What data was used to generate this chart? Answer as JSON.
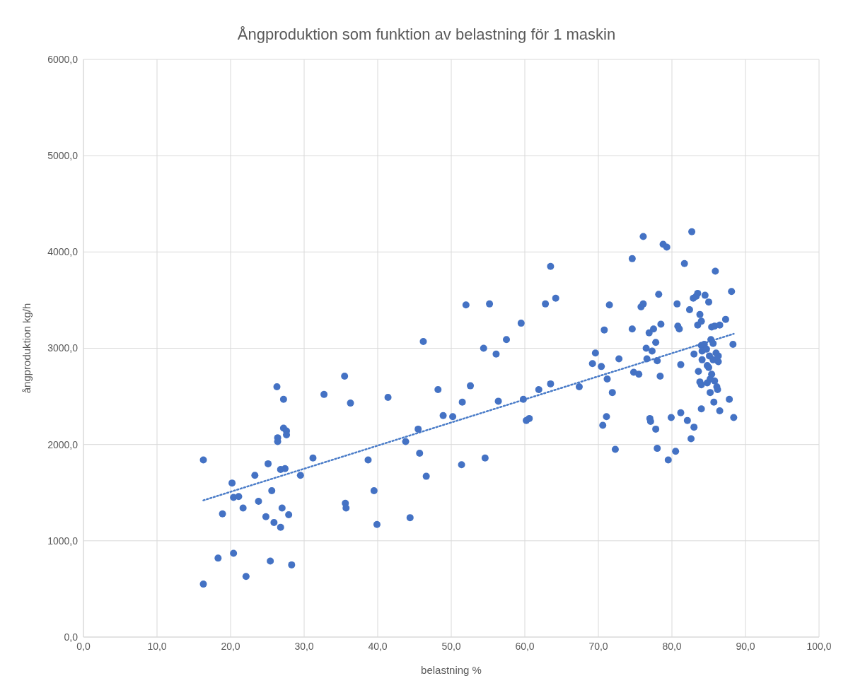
{
  "chart_data": {
    "type": "scatter",
    "title": "Ångproduktion som funktion av belastning för 1 maskin",
    "xlabel": "belastning %",
    "ylabel": "ångproduktion kg/h",
    "xlim": [
      0,
      100
    ],
    "ylim": [
      0,
      6000
    ],
    "xticks": [
      {
        "value": 0,
        "label": "0,0"
      },
      {
        "value": 10,
        "label": "10,0"
      },
      {
        "value": 20,
        "label": "20,0"
      },
      {
        "value": 30,
        "label": "30,0"
      },
      {
        "value": 40,
        "label": "40,0"
      },
      {
        "value": 50,
        "label": "50,0"
      },
      {
        "value": 60,
        "label": "60,0"
      },
      {
        "value": 70,
        "label": "70,0"
      },
      {
        "value": 80,
        "label": "80,0"
      },
      {
        "value": 90,
        "label": "90,0"
      },
      {
        "value": 100,
        "label": "100,0"
      }
    ],
    "yticks": [
      {
        "value": 0,
        "label": "0,0"
      },
      {
        "value": 1000,
        "label": "1000,0"
      },
      {
        "value": 2000,
        "label": "2000,0"
      },
      {
        "value": 3000,
        "label": "3000,0"
      },
      {
        "value": 4000,
        "label": "4000,0"
      },
      {
        "value": 5000,
        "label": "5000,0"
      },
      {
        "value": 6000,
        "label": "6000,0"
      }
    ],
    "grid": true,
    "legend": false,
    "marker": "circle",
    "series": [
      {
        "color": "#4472c4",
        "x": [
          16.3,
          16.3,
          18.3,
          18.9,
          20.2,
          20.4,
          20.4,
          21.1,
          21.7,
          22.1,
          23.3,
          23.8,
          24.8,
          25.1,
          25.6,
          25.4,
          25.9,
          26.3,
          26.4,
          26.4,
          26.8,
          26.8,
          27.0,
          27.2,
          27.2,
          27.4,
          27.6,
          27.6,
          27.9,
          28.3,
          29.5,
          31.2,
          32.7,
          35.5,
          35.6,
          35.7,
          36.3,
          38.7,
          39.5,
          39.9,
          41.4,
          43.8,
          44.4,
          45.5,
          45.7,
          46.2,
          46.6,
          48.2,
          48.9,
          50.2,
          51.5,
          51.4,
          52.0,
          52.6,
          54.4,
          54.6,
          55.2,
          56.1,
          56.4,
          57.5,
          59.5,
          59.8,
          60.2,
          60.6,
          61.9,
          62.8,
          63.5,
          63.5,
          64.2,
          67.4,
          69.2,
          69.6,
          70.4,
          70.6,
          70.8,
          71.1,
          71.2,
          71.5,
          71.9,
          72.3,
          72.8,
          74.6,
          74.6,
          74.8,
          75.5,
          75.8,
          76.1,
          76.1,
          76.5,
          76.6,
          76.9,
          77.0,
          77.1,
          77.3,
          77.5,
          77.8,
          77.8,
          78.0,
          78.0,
          78.2,
          78.4,
          78.5,
          78.8,
          79.3,
          79.5,
          79.9,
          80.5,
          80.7,
          80.8,
          81.0,
          81.2,
          81.2,
          81.7,
          82.1,
          82.4,
          82.6,
          82.7,
          82.9,
          83.0,
          83.0,
          83.3,
          83.5,
          83.5,
          83.6,
          83.8,
          83.8,
          84.0,
          84.0,
          84.0,
          84.0,
          84.1,
          84.1,
          84.4,
          84.5,
          84.7,
          84.8,
          84.8,
          85.0,
          85.0,
          85.1,
          85.2,
          85.2,
          85.3,
          85.4,
          85.4,
          85.6,
          85.6,
          85.7,
          85.8,
          85.8,
          85.9,
          86.0,
          86.1,
          86.2,
          86.3,
          86.3,
          86.5,
          86.5,
          87.3,
          87.8,
          88.1,
          88.3,
          88.4
        ],
        "values": [
          1840,
          550,
          820,
          1280,
          1600,
          1450,
          870,
          1460,
          1340,
          630,
          1680,
          1410,
          1250,
          1800,
          1520,
          790,
          1190,
          2600,
          2070,
          2030,
          1740,
          1140,
          1340,
          2470,
          2170,
          1750,
          2140,
          2100,
          1270,
          750,
          1680,
          1860,
          2520,
          2710,
          1390,
          1340,
          2430,
          1840,
          1520,
          1170,
          2490,
          2030,
          1240,
          2160,
          1910,
          3070,
          1670,
          2570,
          2300,
          2290,
          2440,
          1790,
          3450,
          2610,
          3000,
          1860,
          3460,
          2940,
          2450,
          3090,
          3260,
          2470,
          2250,
          2270,
          2570,
          3460,
          3850,
          2630,
          3520,
          2600,
          2840,
          2950,
          2810,
          2200,
          3190,
          2290,
          2680,
          3450,
          2540,
          1950,
          2890,
          3930,
          3200,
          2750,
          2730,
          3430,
          3460,
          4160,
          3000,
          2890,
          3160,
          2270,
          2240,
          2970,
          3200,
          3060,
          2160,
          2870,
          1960,
          3560,
          2710,
          3250,
          4080,
          4050,
          1840,
          2280,
          1930,
          3460,
          3230,
          3200,
          2830,
          2330,
          3880,
          2250,
          3400,
          2060,
          4210,
          3520,
          2940,
          2180,
          3540,
          3570,
          3240,
          2760,
          2650,
          3350,
          3280,
          2620,
          3030,
          2370,
          2970,
          2880,
          3040,
          3550,
          2990,
          2820,
          2640,
          3480,
          2800,
          2920,
          2540,
          2680,
          3090,
          3220,
          2730,
          2880,
          3050,
          2440,
          2660,
          3230,
          3800,
          2950,
          2600,
          2570,
          2920,
          2860,
          3240,
          2350,
          3300,
          2470,
          3590,
          3040,
          2280
        ]
      },
      {
        "type": "line",
        "color": "#4a7cc8",
        "line_style": "dotted",
        "marker": "none",
        "x": [
          16.3,
          88.4
        ],
        "values": [
          1420,
          3150
        ]
      }
    ]
  }
}
